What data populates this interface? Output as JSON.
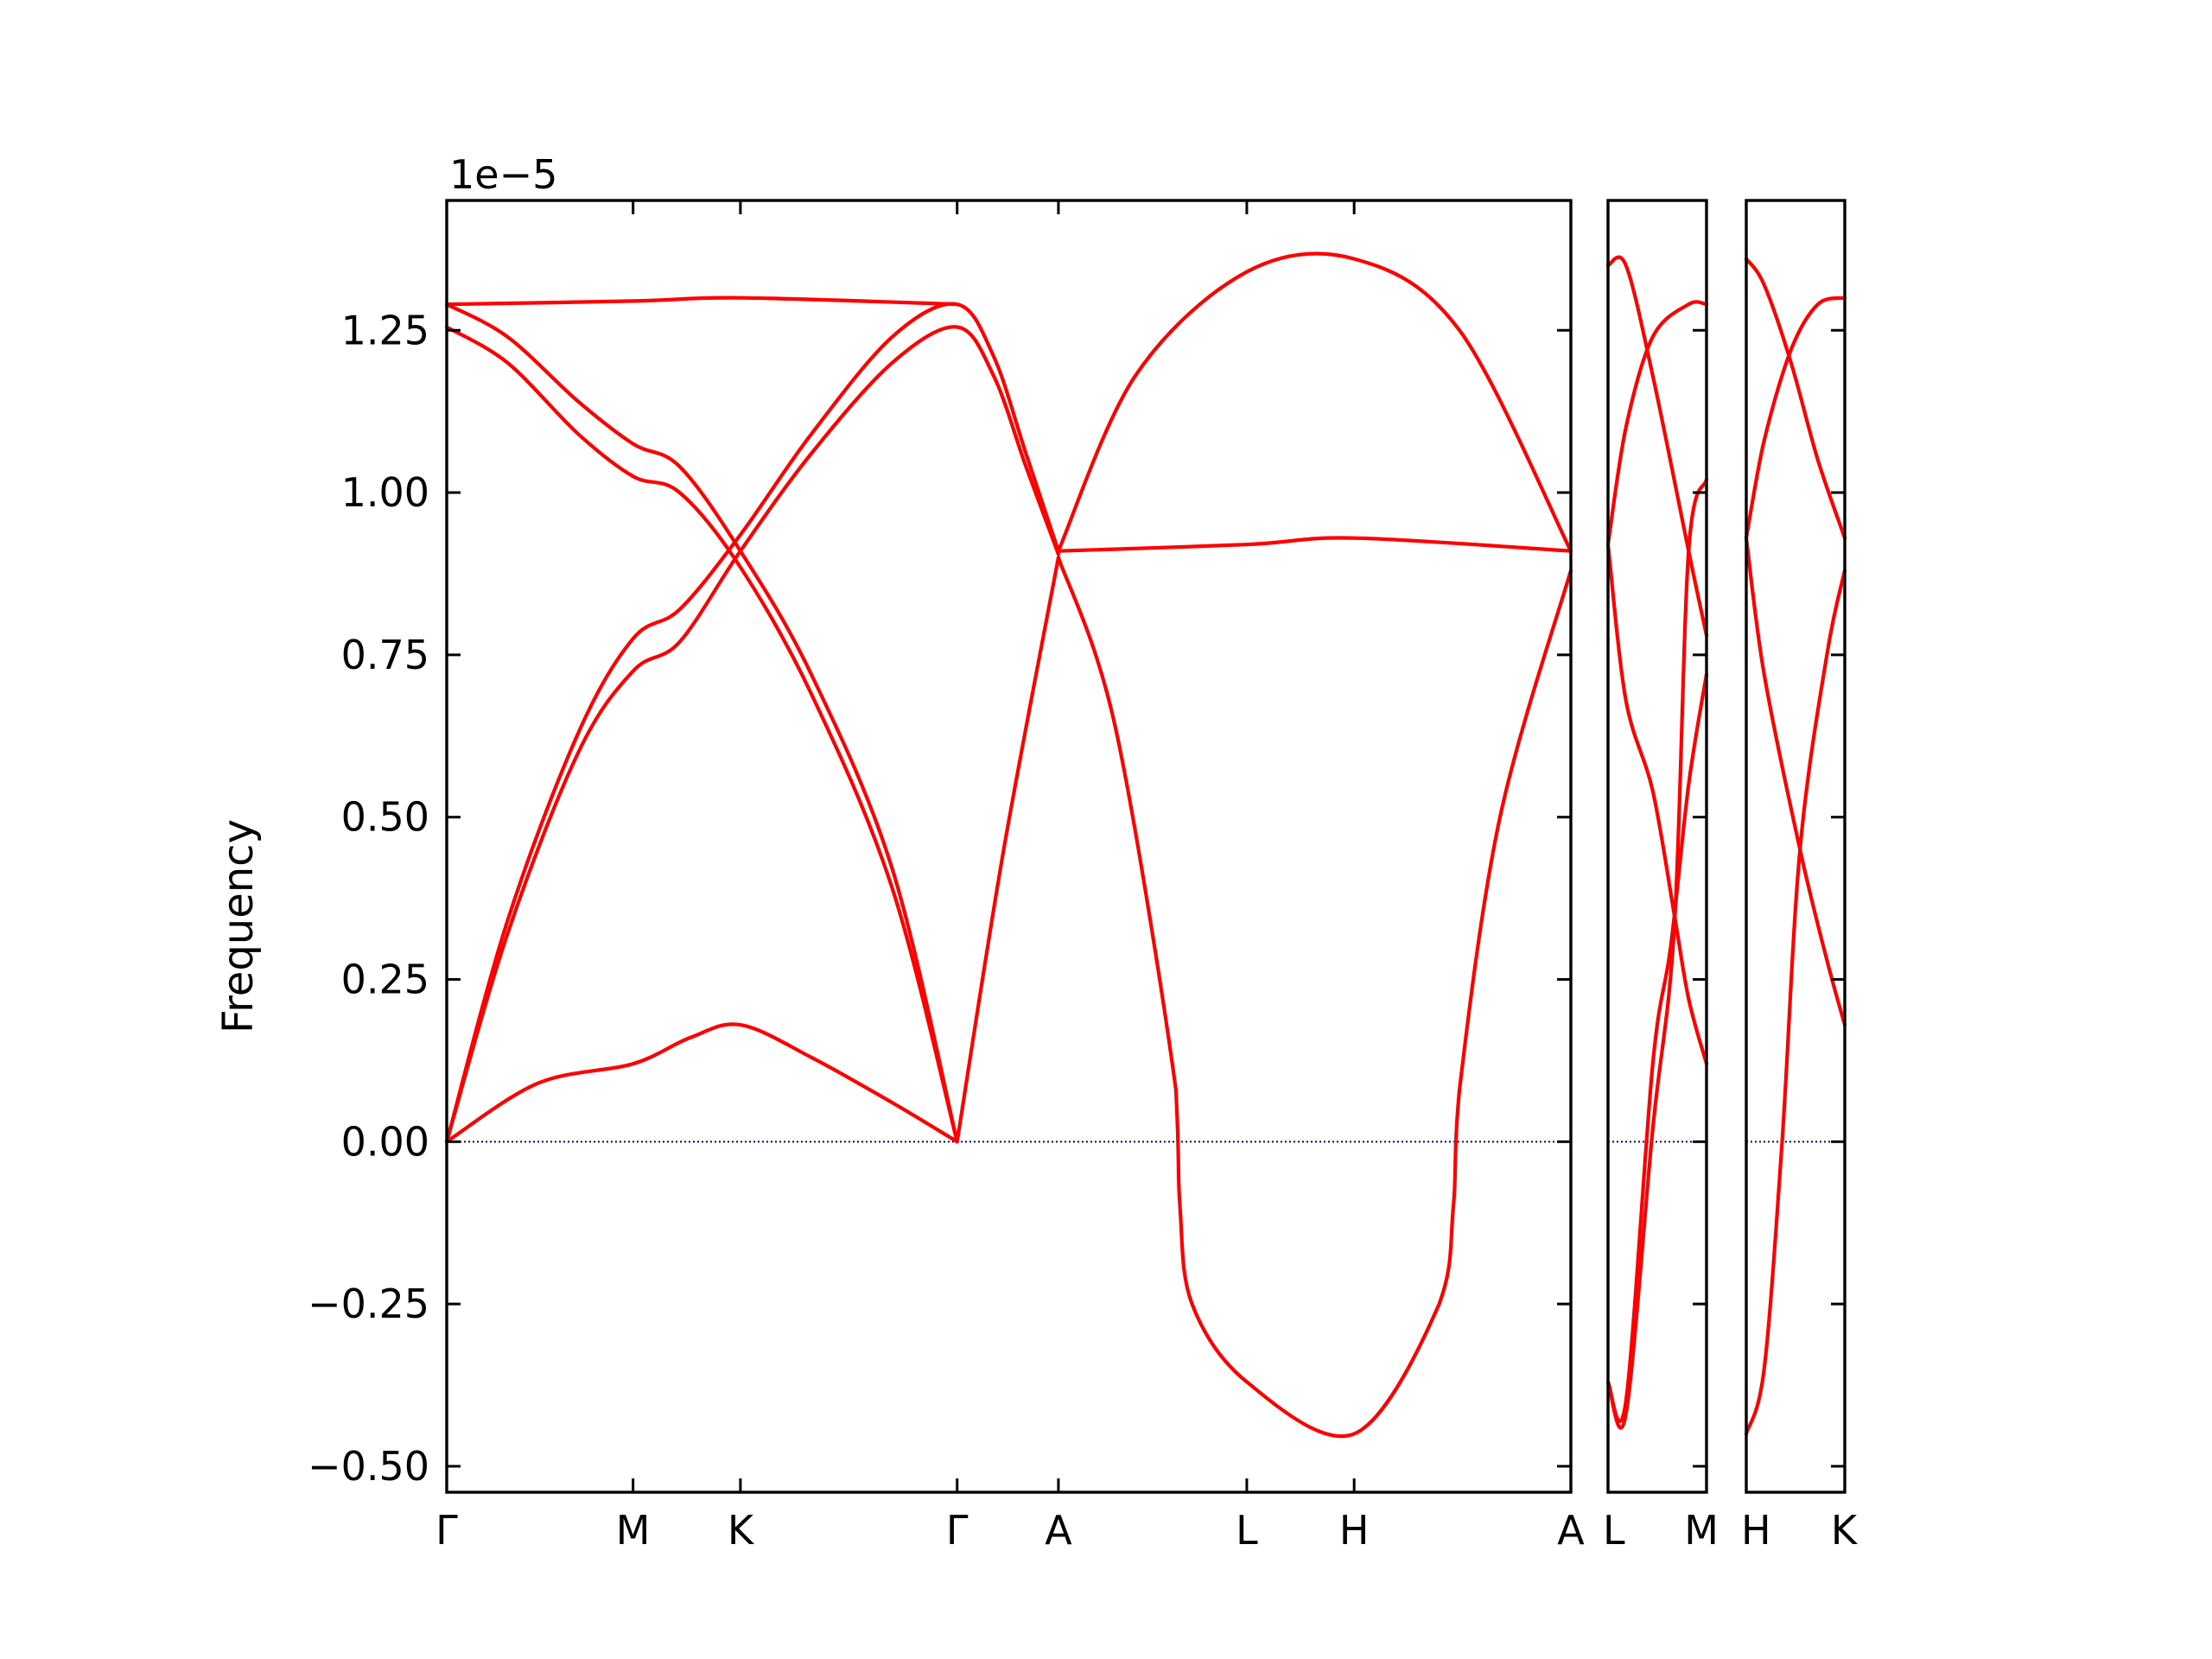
{
  "chart_data": {
    "type": "line",
    "ylabel": "Frequency",
    "y_offset_text": "1e−5",
    "ylim": [
      -0.54,
      1.45
    ],
    "yticks": [
      -0.5,
      -0.25,
      0.0,
      0.25,
      0.5,
      0.75,
      1.0,
      1.25
    ],
    "ytick_labels": [
      "−0.50",
      "−0.25",
      "0.00",
      "0.25",
      "0.50",
      "0.75",
      "1.00",
      "1.25"
    ],
    "zero_line": true,
    "grid": false,
    "colors": {
      "bands": "#ff0000",
      "zero_line": "#00008b",
      "frame": "#000000"
    },
    "panels": [
      {
        "xlim": [
          0,
          5.55
        ],
        "xticks": [
          0,
          0.92,
          1.45,
          2.52,
          3.02,
          3.95,
          4.48,
          5.55
        ],
        "xtick_labels": [
          "Γ",
          "M",
          "K",
          "Γ",
          "A",
          "L",
          "H",
          "A"
        ],
        "series": [
          {
            "points": [
              [
                0,
                1.29
              ],
              [
                0.92,
                1.295
              ],
              [
                1.45,
                1.3
              ],
              [
                2.52,
                1.29
              ]
            ]
          },
          {
            "points": [
              [
                0,
                1.29
              ],
              [
                0.3,
                1.24
              ],
              [
                0.65,
                1.14
              ],
              [
                0.92,
                1.075
              ],
              [
                1.15,
                1.04
              ],
              [
                1.45,
                0.91
              ],
              [
                1.8,
                0.72
              ],
              [
                2.2,
                0.42
              ],
              [
                2.52,
                0.0
              ]
            ]
          },
          {
            "points": [
              [
                0,
                1.255
              ],
              [
                0.3,
                1.2
              ],
              [
                0.65,
                1.09
              ],
              [
                0.92,
                1.025
              ],
              [
                1.15,
                1.0
              ],
              [
                1.45,
                0.885
              ],
              [
                1.8,
                0.69
              ],
              [
                2.2,
                0.39
              ],
              [
                2.52,
                0.0
              ]
            ]
          },
          {
            "points": [
              [
                0,
                0.0
              ],
              [
                0.3,
                0.34
              ],
              [
                0.65,
                0.63
              ],
              [
                0.92,
                0.775
              ],
              [
                1.15,
                0.82
              ],
              [
                1.45,
                0.935
              ],
              [
                1.8,
                1.09
              ],
              [
                2.2,
                1.24
              ],
              [
                2.52,
                1.29
              ],
              [
                2.7,
                1.21
              ],
              [
                2.86,
                1.06
              ],
              [
                3.02,
                0.91
              ]
            ]
          },
          {
            "points": [
              [
                0,
                0.0
              ],
              [
                0.3,
                0.32
              ],
              [
                0.65,
                0.6
              ],
              [
                0.92,
                0.725
              ],
              [
                1.15,
                0.77
              ],
              [
                1.45,
                0.91
              ],
              [
                1.8,
                1.06
              ],
              [
                2.2,
                1.2
              ],
              [
                2.52,
                1.255
              ],
              [
                2.7,
                1.18
              ],
              [
                2.86,
                1.04
              ],
              [
                3.02,
                0.905
              ]
            ]
          },
          {
            "points": [
              [
                0,
                0.0
              ],
              [
                0.45,
                0.09
              ],
              [
                0.92,
                0.12
              ],
              [
                1.2,
                0.16
              ],
              [
                1.45,
                0.18
              ],
              [
                1.8,
                0.13
              ],
              [
                2.2,
                0.06
              ],
              [
                2.52,
                0.0
              ]
            ]
          },
          {
            "points": [
              [
                2.52,
                0.0
              ],
              [
                2.75,
                0.45
              ],
              [
                3.02,
                0.9
              ]
            ]
          },
          {
            "points": [
              [
                3.02,
                0.91
              ],
              [
                3.95,
                0.92
              ],
              [
                4.48,
                0.93
              ],
              [
                5.55,
                0.91
              ]
            ]
          },
          {
            "points": [
              [
                3.02,
                0.9
              ],
              [
                3.3,
                0.64
              ],
              [
                3.6,
                0.08
              ],
              [
                3.62,
                -0.1
              ],
              [
                3.68,
                -0.25
              ],
              [
                3.95,
                -0.37
              ],
              [
                4.48,
                -0.45
              ],
              [
                4.9,
                -0.25
              ],
              [
                4.97,
                -0.1
              ],
              [
                5.0,
                0.08
              ],
              [
                5.2,
                0.5
              ],
              [
                5.55,
                0.88
              ]
            ]
          },
          {
            "points": [
              [
                3.02,
                0.91
              ],
              [
                3.4,
                1.18
              ],
              [
                3.95,
                1.34
              ],
              [
                4.48,
                1.36
              ],
              [
                5.0,
                1.25
              ],
              [
                5.55,
                0.91
              ]
            ]
          }
        ]
      },
      {
        "xlim": [
          0,
          0.55
        ],
        "xticks": [
          0,
          0.55
        ],
        "xtick_labels": [
          "L",
          "M"
        ],
        "series": [
          {
            "points": [
              [
                0,
                1.35
              ],
              [
                0.1,
                1.35
              ],
              [
                0.25,
                1.18
              ],
              [
                0.45,
                0.91
              ],
              [
                0.55,
                0.78
              ]
            ]
          },
          {
            "points": [
              [
                0,
                0.92
              ],
              [
                0.1,
                1.1
              ],
              [
                0.25,
                1.24
              ],
              [
                0.45,
                1.29
              ],
              [
                0.55,
                1.29
              ]
            ]
          },
          {
            "points": [
              [
                0,
                0.92
              ],
              [
                0.1,
                0.68
              ],
              [
                0.25,
                0.54
              ],
              [
                0.37,
                0.35
              ],
              [
                0.45,
                0.22
              ],
              [
                0.55,
                0.12
              ]
            ]
          },
          {
            "points": [
              [
                0,
                -0.37
              ],
              [
                0.1,
                -0.4
              ],
              [
                0.25,
                0.12
              ],
              [
                0.35,
                0.3
              ],
              [
                0.45,
                0.55
              ],
              [
                0.55,
                0.72
              ]
            ]
          },
          {
            "points": [
              [
                0,
                -0.37
              ],
              [
                0.1,
                -0.42
              ],
              [
                0.25,
                0.02
              ],
              [
                0.37,
                0.33
              ],
              [
                0.45,
                0.91
              ],
              [
                0.55,
                1.02
              ]
            ]
          }
        ]
      },
      {
        "xlim": [
          0,
          0.55
        ],
        "xticks": [
          0,
          0.55
        ],
        "xtick_labels": [
          "H",
          "K"
        ],
        "series": [
          {
            "points": [
              [
                0,
                1.36
              ],
              [
                0.1,
                1.32
              ],
              [
                0.25,
                1.2
              ],
              [
                0.4,
                1.05
              ],
              [
                0.55,
                0.93
              ]
            ]
          },
          {
            "points": [
              [
                0,
                0.93
              ],
              [
                0.1,
                1.08
              ],
              [
                0.25,
                1.22
              ],
              [
                0.4,
                1.29
              ],
              [
                0.55,
                1.3
              ]
            ]
          },
          {
            "points": [
              [
                0,
                0.93
              ],
              [
                0.1,
                0.72
              ],
              [
                0.3,
                0.45
              ],
              [
                0.45,
                0.28
              ],
              [
                0.55,
                0.18
              ]
            ]
          },
          {
            "points": [
              [
                0,
                -0.45
              ],
              [
                0.1,
                -0.35
              ],
              [
                0.2,
                0.0
              ],
              [
                0.3,
                0.45
              ],
              [
                0.45,
                0.75
              ],
              [
                0.55,
                0.88
              ]
            ]
          }
        ]
      }
    ]
  }
}
